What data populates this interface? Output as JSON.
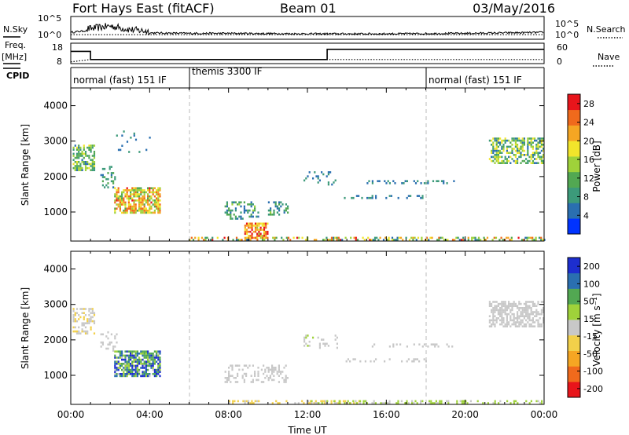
{
  "header": {
    "radar_title": "Fort Hays East (fitACF)",
    "beam": "Beam 01",
    "date": "03/May/2016"
  },
  "panels": {
    "nsky_label": "N.Sky",
    "nsearch_label": "N.Search",
    "noise_ticks": [
      "10^5",
      "10^0"
    ],
    "freq_label": "Freq.",
    "freq_unit": "[MHz]",
    "freq_ticks": [
      "18",
      "8"
    ],
    "nave_label": "Nave",
    "nave_ticks": [
      "60",
      "0"
    ],
    "cpid_label": "CPID",
    "cpid_segments": [
      {
        "label": "normal (fast) 151 IF",
        "start_h": 0,
        "end_h": 6
      },
      {
        "label": "themis 3300 IF",
        "start_h": 6,
        "end_h": 18
      },
      {
        "label": "normal (fast) 151 IF",
        "start_h": 18,
        "end_h": 24
      }
    ]
  },
  "colors": {
    "power_scale": [
      "#0033ff",
      "#2a6fb0",
      "#3c9a7a",
      "#52a852",
      "#9fd23a",
      "#f2e52b",
      "#f5a623",
      "#f06a1c",
      "#e8151b"
    ],
    "velocity_scale": [
      "#e8151b",
      "#f06a1c",
      "#f5a623",
      "#f2d04a",
      "#c8c8c8",
      "#9fd23a",
      "#52a852",
      "#2a6fb0",
      "#1d2ecf"
    ]
  },
  "chart_data": [
    {
      "type": "line",
      "name": "noise",
      "series": [
        {
          "name": "N.Sky",
          "style": "solid"
        },
        {
          "name": "N.Search",
          "style": "dotted"
        }
      ],
      "x": [
        0,
        1,
        2,
        3,
        4,
        6,
        8,
        12,
        16,
        20,
        24
      ],
      "nsky": [
        1.5,
        2.0,
        2.6,
        1.8,
        1.4,
        1.3,
        1.3,
        1.2,
        1.2,
        1.3,
        1.5
      ],
      "nsearch": [
        1.0,
        1.0,
        1.0,
        1.0,
        1.0,
        1.0,
        1.0,
        1.0,
        1.0,
        1.0,
        1.0
      ],
      "ylim": [
        0,
        5
      ],
      "ytick_labels": [
        "10^0",
        "10^5"
      ]
    },
    {
      "type": "line",
      "name": "frequency-nave",
      "series": [
        {
          "name": "Freq. [MHz]",
          "style": "solid",
          "x": [
            0,
            1,
            1,
            13,
            13,
            24
          ],
          "values": [
            14,
            14,
            10,
            10,
            15,
            15
          ]
        },
        {
          "name": "Nave",
          "style": "dotted",
          "x": [
            0,
            1,
            3,
            13,
            24
          ],
          "values": [
            5,
            12,
            12,
            12,
            12
          ]
        }
      ],
      "ylim_freq": [
        8,
        18
      ],
      "ylim_nave": [
        0,
        60
      ]
    },
    {
      "type": "heatmap",
      "name": "power",
      "ylabel": "Slant Range [km]",
      "xlim": [
        0,
        24
      ],
      "ylim": [
        180,
        4500
      ],
      "yticks": [
        1000,
        2000,
        3000,
        4000
      ],
      "colorbar": {
        "label": "Power [dB]",
        "range": [
          0,
          30
        ],
        "ticks": [
          4,
          8,
          12,
          16,
          20,
          24,
          28
        ]
      },
      "regions": [
        {
          "t0": 0.1,
          "t1": 1.2,
          "r0": 2200,
          "r1": 2900,
          "vmin": 6,
          "vmax": 18,
          "density": 0.55
        },
        {
          "t0": 1.5,
          "t1": 2.3,
          "r0": 1700,
          "r1": 2300,
          "vmin": 4,
          "vmax": 12,
          "density": 0.25
        },
        {
          "t0": 2.2,
          "t1": 4.5,
          "r0": 1000,
          "r1": 1700,
          "vmin": 12,
          "vmax": 27,
          "density": 0.75
        },
        {
          "t0": 2.3,
          "t1": 4.0,
          "r0": 2700,
          "r1": 3300,
          "vmin": 4,
          "vmax": 10,
          "density": 0.08
        },
        {
          "t0": 7.8,
          "t1": 9.5,
          "r0": 800,
          "r1": 1300,
          "vmin": 4,
          "vmax": 14,
          "density": 0.35
        },
        {
          "t0": 8.8,
          "t1": 10.0,
          "r0": 250,
          "r1": 700,
          "vmin": 16,
          "vmax": 30,
          "density": 0.7
        },
        {
          "t0": 10.0,
          "t1": 11.0,
          "r0": 900,
          "r1": 1300,
          "vmin": 4,
          "vmax": 14,
          "density": 0.4
        },
        {
          "t0": 11.8,
          "t1": 13.5,
          "r0": 1750,
          "r1": 2150,
          "vmin": 4,
          "vmax": 10,
          "density": 0.2
        },
        {
          "t0": 13.5,
          "t1": 18.0,
          "r0": 1380,
          "r1": 1480,
          "vmin": 4,
          "vmax": 8,
          "density": 0.25
        },
        {
          "t0": 15.0,
          "t1": 19.5,
          "r0": 1820,
          "r1": 1900,
          "vmin": 4,
          "vmax": 8,
          "density": 0.3
        },
        {
          "t0": 21.2,
          "t1": 24.0,
          "r0": 2400,
          "r1": 3100,
          "vmin": 4,
          "vmax": 20,
          "density": 0.6
        },
        {
          "t0": 6.0,
          "t1": 24.0,
          "r0": 190,
          "r1": 300,
          "vmin": 4,
          "vmax": 28,
          "density": 0.45
        }
      ]
    },
    {
      "type": "heatmap",
      "name": "velocity",
      "ylabel": "Slant Range [km]",
      "xlabel": "Time UT",
      "xlim": [
        0,
        24
      ],
      "ylim": [
        180,
        4500
      ],
      "yticks": [
        1000,
        2000,
        3000,
        4000
      ],
      "xtick_labels": [
        "00:00",
        "04:00",
        "08:00",
        "12:00",
        "16:00",
        "20:00",
        "00:00"
      ],
      "colorbar": {
        "label": "Velocity [m s⁻¹]",
        "ticks": [
          200,
          100,
          50,
          15,
          -15,
          -50,
          -100,
          -200
        ]
      },
      "regions": [
        {
          "t0": 0.1,
          "t1": 1.2,
          "r0": 2200,
          "r1": 2900,
          "vmin": -50,
          "vmax": 15,
          "density": 0.45
        },
        {
          "t0": 2.2,
          "t1": 4.5,
          "r0": 1000,
          "r1": 1700,
          "vmin": 15,
          "vmax": 250,
          "density": 0.75
        },
        {
          "t0": 1.5,
          "t1": 2.3,
          "r0": 1700,
          "r1": 2300,
          "vmin": -15,
          "vmax": 15,
          "density": 0.2
        },
        {
          "t0": 7.8,
          "t1": 11.0,
          "r0": 800,
          "r1": 1300,
          "vmin": -15,
          "vmax": 15,
          "density": 0.35
        },
        {
          "t0": 11.8,
          "t1": 13.5,
          "r0": 1750,
          "r1": 2150,
          "vmin": -15,
          "vmax": 50,
          "density": 0.2
        },
        {
          "t0": 13.5,
          "t1": 18.0,
          "r0": 1380,
          "r1": 1480,
          "vmin": -15,
          "vmax": 15,
          "density": 0.22
        },
        {
          "t0": 15.0,
          "t1": 19.5,
          "r0": 1820,
          "r1": 1900,
          "vmin": -15,
          "vmax": 15,
          "density": 0.25
        },
        {
          "t0": 21.2,
          "t1": 24.0,
          "r0": 2400,
          "r1": 3100,
          "vmin": -15,
          "vmax": 15,
          "density": 0.6
        },
        {
          "t0": 8.0,
          "t1": 15.0,
          "r0": 190,
          "r1": 300,
          "vmin": -70,
          "vmax": -20,
          "density": 0.35
        },
        {
          "t0": 12.0,
          "t1": 24.0,
          "r0": 190,
          "r1": 300,
          "vmin": 15,
          "vmax": 60,
          "density": 0.35
        }
      ]
    }
  ]
}
